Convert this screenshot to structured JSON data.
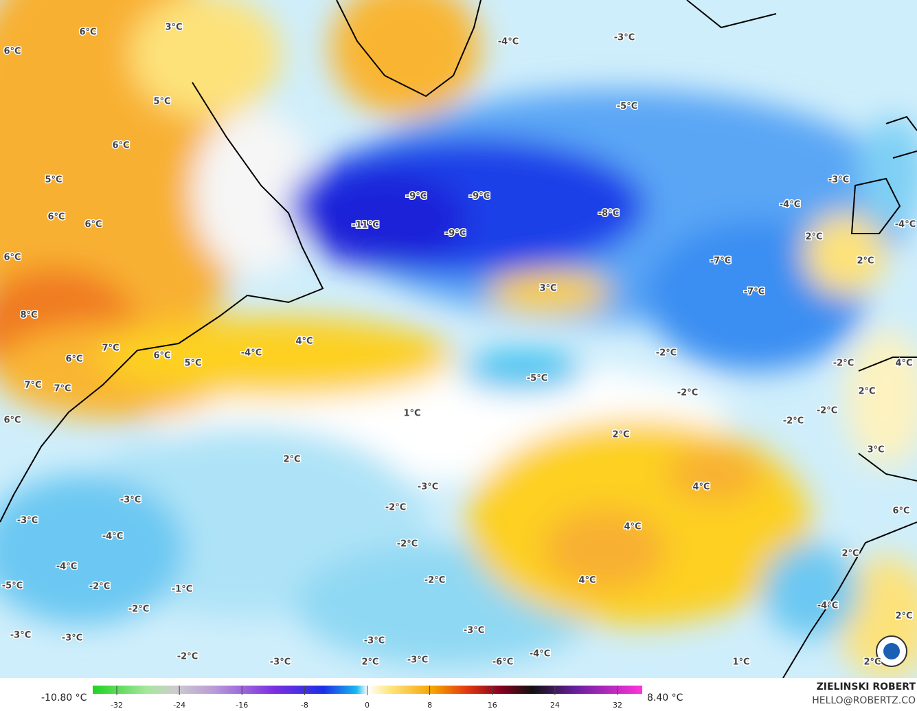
{
  "map": {
    "labels": [
      "6°C",
      "3°C",
      "6°C",
      "5°C",
      "6°C",
      "5°C",
      "6°C",
      "6°C",
      "6°C",
      "8°C",
      "7°C",
      "6°C",
      "6°C",
      "5°C",
      "-4°C",
      "4°C",
      "7°C",
      "7°C",
      "6°C",
      "-4°C",
      "-3°C",
      "-5°C",
      "-9°C",
      "-9°C",
      "-11°C",
      "-9°C",
      "-8°C",
      "-7°C",
      "-7°C",
      "-3°C",
      "-4°C",
      "-4°C",
      "2°C",
      "2°C",
      "3°C",
      "-2°C",
      "-2°C",
      "4°C",
      "-5°C",
      "-2°C",
      "-2°C",
      "-2°C",
      "1°C",
      "2°C",
      "2°C",
      "3°C",
      "2°C",
      "-3°C",
      "4°C",
      "-3°C",
      "-2°C",
      "-3°C",
      "6°C",
      "4°C",
      "-4°C",
      "-2°C",
      "2°C",
      "-4°C",
      "-2°C",
      "4°C",
      "-5°C",
      "-2°C",
      "-1°C",
      "-2°C",
      "-4°C",
      "2°C",
      "-3°C",
      "-3°C",
      "-3°C",
      "-3°C",
      "-4°C",
      "-2°C",
      "-3°C",
      "2°C",
      "-3°C",
      "-6°C",
      "1°C",
      "2°C"
    ]
  },
  "colorbar": {
    "min_label": "-10.80 °C",
    "max_label": "8.40 °C",
    "ticks": [
      -32,
      -24,
      -16,
      -8,
      0,
      8,
      16,
      24,
      32
    ]
  },
  "credits": {
    "author": "ZIELINSKI ROBERT",
    "contact": "HELLO@ROBERTZ.CO"
  }
}
